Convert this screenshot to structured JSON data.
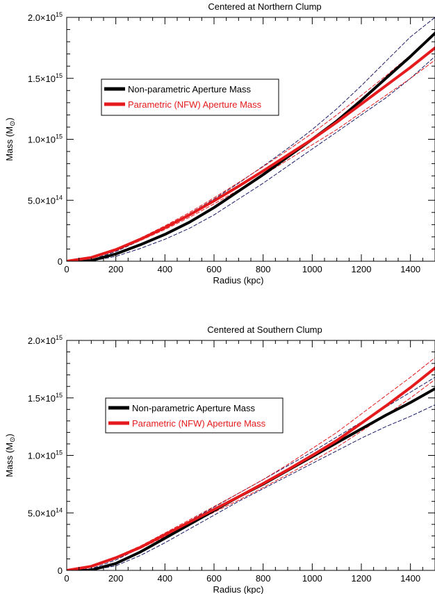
{
  "colors": {
    "nonparametric": "#000000",
    "parametric": "#e41a1c",
    "band_np": "#1a1a66",
    "band_p": "#e41a1c"
  },
  "chart_data": [
    {
      "type": "line",
      "title": "Centered at Northern Clump",
      "xlabel": "Radius (kpc)",
      "ylabel": "Mass (M",
      "ylabel_sub": "⊙",
      "ylabel_close": ")",
      "xlim": [
        0,
        1500
      ],
      "ylim": [
        0,
        2000000000000000.0
      ],
      "xticks": [
        0,
        200,
        400,
        600,
        800,
        1000,
        1200,
        1400
      ],
      "yticks": [
        {
          "value": 0,
          "mantissa": "0",
          "exp": ""
        },
        {
          "value": 500000000000000.0,
          "mantissa": "5.0×10",
          "exp": "14"
        },
        {
          "value": 1000000000000000.0,
          "mantissa": "1.0×10",
          "exp": "15"
        },
        {
          "value": 1500000000000000.0,
          "mantissa": "1.5×10",
          "exp": "15"
        },
        {
          "value": 2000000000000000.0,
          "mantissa": "2.0×10",
          "exp": "15"
        }
      ],
      "legend": {
        "placement": "upper-left",
        "entries": [
          {
            "label": "Non-parametric Aperture Mass",
            "series": "nonparametric"
          },
          {
            "label": "Parametric (NFW) Aperture Mass",
            "series": "parametric"
          }
        ]
      },
      "series": [
        {
          "name": "Non-parametric Aperture Mass",
          "style": "solid",
          "key": "nonparametric",
          "x": [
            0,
            80,
            100,
            200,
            300,
            400,
            500,
            600,
            700,
            800,
            900,
            1000,
            1100,
            1200,
            1300,
            1400,
            1500
          ],
          "y": [
            0,
            2000000000000.0,
            5000000000000.0,
            60000000000000.0,
            135000000000000.0,
            220000000000000.0,
            320000000000000.0,
            440000000000000.0,
            575000000000000.0,
            710000000000000.0,
            855000000000000.0,
            1000000000000000.0,
            1150000000000000.0,
            1320000000000000.0,
            1500000000000000.0,
            1680000000000000.0,
            1870000000000000.0
          ]
        },
        {
          "name": "Non-parametric upper bound",
          "style": "dashed",
          "key": "band_np",
          "x": [
            0,
            100,
            200,
            300,
            400,
            500,
            600,
            700,
            800,
            900,
            1000,
            1100,
            1200,
            1300,
            1400,
            1500
          ],
          "y": [
            0,
            12000000000000.0,
            80000000000000.0,
            170000000000000.0,
            270000000000000.0,
            390000000000000.0,
            510000000000000.0,
            640000000000000.0,
            780000000000000.0,
            925000000000000.0,
            1080000000000000.0,
            1250000000000000.0,
            1440000000000000.0,
            1640000000000000.0,
            1840000000000000.0,
            2000000000000000.0
          ]
        },
        {
          "name": "Non-parametric lower bound",
          "style": "dashed",
          "key": "band_np",
          "x": [
            0,
            100,
            200,
            300,
            400,
            500,
            600,
            700,
            800,
            900,
            1000,
            1100,
            1200,
            1300,
            1400,
            1500
          ],
          "y": [
            0,
            1000000000000.0,
            40000000000000.0,
            105000000000000.0,
            180000000000000.0,
            270000000000000.0,
            380000000000000.0,
            510000000000000.0,
            640000000000000.0,
            780000000000000.0,
            920000000000000.0,
            1060000000000000.0,
            1200000000000000.0,
            1340000000000000.0,
            1500000000000000.0,
            1680000000000000.0
          ]
        },
        {
          "name": "Parametric (NFW) Aperture Mass",
          "style": "solid",
          "key": "parametric",
          "x": [
            0,
            100,
            200,
            300,
            400,
            500,
            600,
            700,
            800,
            900,
            1000,
            1100,
            1200,
            1300,
            1400,
            1500
          ],
          "y": [
            0,
            30000000000000.0,
            95000000000000.0,
            180000000000000.0,
            275000000000000.0,
            380000000000000.0,
            495000000000000.0,
            615000000000000.0,
            740000000000000.0,
            870000000000000.0,
            1000000000000000.0,
            1140000000000000.0,
            1290000000000000.0,
            1440000000000000.0,
            1590000000000000.0,
            1750000000000000.0
          ]
        },
        {
          "name": "Parametric upper bound",
          "style": "dashed",
          "key": "band_p",
          "x": [
            0,
            100,
            200,
            300,
            400,
            500,
            600,
            700,
            800,
            900,
            1000,
            1100,
            1200,
            1300,
            1400,
            1500
          ],
          "y": [
            0,
            32000000000000.0,
            100000000000000.0,
            190000000000000.0,
            290000000000000.0,
            400000000000000.0,
            520000000000000.0,
            645000000000000.0,
            775000000000000.0,
            910000000000000.0,
            1050000000000000.0,
            1200000000000000.0,
            1360000000000000.0,
            1520000000000000.0,
            1690000000000000.0,
            1860000000000000.0
          ]
        },
        {
          "name": "Parametric lower bound",
          "style": "dashed",
          "key": "band_p",
          "x": [
            0,
            100,
            200,
            300,
            400,
            500,
            600,
            700,
            800,
            900,
            1000,
            1100,
            1200,
            1300,
            1400,
            1500
          ],
          "y": [
            0,
            28000000000000.0,
            90000000000000.0,
            170000000000000.0,
            260000000000000.0,
            360000000000000.0,
            470000000000000.0,
            585000000000000.0,
            705000000000000.0,
            830000000000000.0,
            955000000000000.0,
            1080000000000000.0,
            1220000000000000.0,
            1360000000000000.0,
            1500000000000000.0,
            1650000000000000.0
          ]
        }
      ]
    },
    {
      "type": "line",
      "title": "Centered at Southern Clump",
      "xlabel": "Radius (kpc)",
      "ylabel": "Mass (M",
      "ylabel_sub": "⊙",
      "ylabel_close": ")",
      "xlim": [
        0,
        1500
      ],
      "ylim": [
        0,
        2000000000000000.0
      ],
      "xticks": [
        0,
        200,
        400,
        600,
        800,
        1000,
        1200,
        1400
      ],
      "yticks": [
        {
          "value": 0,
          "mantissa": "0",
          "exp": ""
        },
        {
          "value": 500000000000000.0,
          "mantissa": "5.0×10",
          "exp": "14"
        },
        {
          "value": 1000000000000000.0,
          "mantissa": "1.0×10",
          "exp": "15"
        },
        {
          "value": 1500000000000000.0,
          "mantissa": "1.5×10",
          "exp": "15"
        },
        {
          "value": 2000000000000000.0,
          "mantissa": "2.0×10",
          "exp": "15"
        }
      ],
      "legend": {
        "placement": "upper-left",
        "entries": [
          {
            "label": "Non-parametric Aperture Mass",
            "series": "nonparametric"
          },
          {
            "label": "Parametric (NFW) Aperture Mass",
            "series": "parametric"
          }
        ]
      },
      "series": [
        {
          "name": "Non-parametric Aperture Mass",
          "style": "solid",
          "key": "nonparametric",
          "x": [
            0,
            80,
            100,
            200,
            300,
            400,
            500,
            600,
            700,
            800,
            900,
            1000,
            1100,
            1200,
            1300,
            1400,
            1500
          ],
          "y": [
            0,
            0,
            3000000000000.0,
            60000000000000.0,
            160000000000000.0,
            280000000000000.0,
            400000000000000.0,
            520000000000000.0,
            640000000000000.0,
            750000000000000.0,
            870000000000000.0,
            990000000000000.0,
            1110000000000000.0,
            1230000000000000.0,
            1350000000000000.0,
            1460000000000000.0,
            1580000000000000.0
          ]
        },
        {
          "name": "Non-parametric upper bound",
          "style": "dashed",
          "key": "band_np",
          "x": [
            0,
            100,
            200,
            300,
            400,
            500,
            600,
            700,
            800,
            900,
            1000,
            1100,
            1200,
            1300,
            1400,
            1500
          ],
          "y": [
            0,
            15000000000000.0,
            90000000000000.0,
            195000000000000.0,
            310000000000000.0,
            430000000000000.0,
            550000000000000.0,
            670000000000000.0,
            790000000000000.0,
            910000000000000.0,
            1030000000000000.0,
            1160000000000000.0,
            1290000000000000.0,
            1420000000000000.0,
            1550000000000000.0,
            1680000000000000.0
          ]
        },
        {
          "name": "Non-parametric lower bound",
          "style": "dashed",
          "key": "band_np",
          "x": [
            0,
            100,
            200,
            300,
            400,
            500,
            600,
            700,
            800,
            900,
            1000,
            1100,
            1200,
            1300,
            1400,
            1500
          ],
          "y": [
            0,
            0,
            40000000000000.0,
            130000000000000.0,
            240000000000000.0,
            360000000000000.0,
            480000000000000.0,
            600000000000000.0,
            710000000000000.0,
            820000000000000.0,
            930000000000000.0,
            1040000000000000.0,
            1150000000000000.0,
            1250000000000000.0,
            1340000000000000.0,
            1440000000000000.0
          ]
        },
        {
          "name": "Parametric (NFW) Aperture Mass",
          "style": "solid",
          "key": "parametric",
          "x": [
            0,
            100,
            200,
            300,
            400,
            500,
            600,
            700,
            800,
            900,
            1000,
            1100,
            1200,
            1300,
            1400,
            1500
          ],
          "y": [
            0,
            35000000000000.0,
            110000000000000.0,
            200000000000000.0,
            310000000000000.0,
            420000000000000.0,
            530000000000000.0,
            640000000000000.0,
            755000000000000.0,
            875000000000000.0,
            1000000000000000.0,
            1130000000000000.0,
            1280000000000000.0,
            1430000000000000.0,
            1590000000000000.0,
            1760000000000000.0
          ]
        },
        {
          "name": "Parametric upper bound",
          "style": "dashed",
          "key": "band_p",
          "x": [
            0,
            100,
            200,
            300,
            400,
            500,
            600,
            700,
            800,
            900,
            1000,
            1100,
            1200,
            1300,
            1400,
            1500
          ],
          "y": [
            0,
            38000000000000.0,
            117000000000000.0,
            212000000000000.0,
            325000000000000.0,
            440000000000000.0,
            555000000000000.0,
            670000000000000.0,
            790000000000000.0,
            920000000000000.0,
            1060000000000000.0,
            1200000000000000.0,
            1360000000000000.0,
            1520000000000000.0,
            1680000000000000.0,
            1850000000000000.0
          ]
        },
        {
          "name": "Parametric lower bound",
          "style": "dashed",
          "key": "band_p",
          "x": [
            0,
            100,
            200,
            300,
            400,
            500,
            600,
            700,
            800,
            900,
            1000,
            1100,
            1200,
            1300,
            1400,
            1500
          ],
          "y": [
            0,
            32000000000000.0,
            103000000000000.0,
            190000000000000.0,
            295000000000000.0,
            400000000000000.0,
            505000000000000.0,
            610000000000000.0,
            720000000000000.0,
            835000000000000.0,
            950000000000000.0,
            1070000000000000.0,
            1210000000000000.0,
            1350000000000000.0,
            1500000000000000.0,
            1660000000000000.0
          ]
        }
      ]
    }
  ]
}
